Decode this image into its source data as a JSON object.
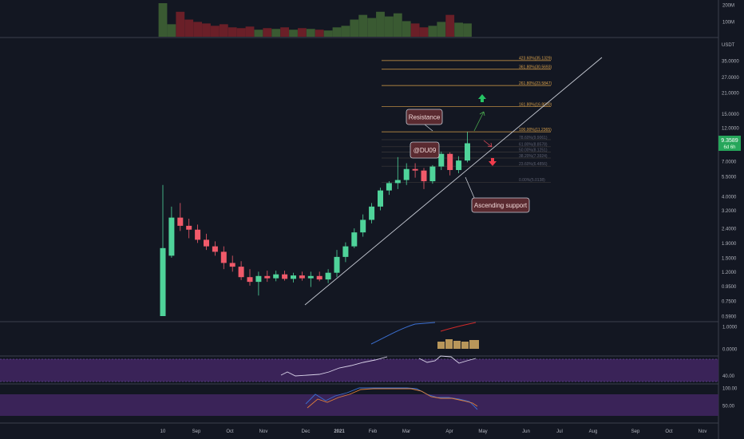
{
  "chart_data": {
    "type": "candlestick",
    "quote_unit": "USDT",
    "price_scale": "log",
    "ylim": [
      0.55,
      42
    ],
    "price_ticks": [
      "35.0000",
      "27.0000",
      "21.0000",
      "15.0000",
      "12.0000",
      "9.0000",
      "7.0000",
      "5.5000",
      "4.0000",
      "3.2000",
      "2.4000",
      "1.9000",
      "1.5000",
      "1.2000",
      "0.9500",
      "0.7500",
      "0.5900"
    ],
    "time_ticks": [
      "10",
      "Sep",
      "Oct",
      "Nov",
      "Dec",
      "2021",
      "Feb",
      "Mar",
      "Apr",
      "May",
      "Jun",
      "Jul",
      "Aug",
      "Sep",
      "Oct",
      "Nov"
    ],
    "current_price": "9.3589",
    "countdown": "6d 6h",
    "candles": [
      {
        "o": 0.59,
        "h": 4.8,
        "l": 0.59,
        "c": 1.75
      },
      {
        "o": 1.55,
        "h": 3.4,
        "l": 1.5,
        "c": 2.85
      },
      {
        "o": 2.85,
        "h": 3.6,
        "l": 2.3,
        "c": 2.5
      },
      {
        "o": 2.5,
        "h": 2.8,
        "l": 2.05,
        "c": 2.35
      },
      {
        "o": 2.35,
        "h": 2.55,
        "l": 1.9,
        "c": 2.0
      },
      {
        "o": 2.0,
        "h": 2.2,
        "l": 1.7,
        "c": 1.8
      },
      {
        "o": 1.8,
        "h": 1.95,
        "l": 1.55,
        "c": 1.65
      },
      {
        "o": 1.65,
        "h": 1.8,
        "l": 1.25,
        "c": 1.38
      },
      {
        "o": 1.38,
        "h": 1.55,
        "l": 1.2,
        "c": 1.3
      },
      {
        "o": 1.3,
        "h": 1.42,
        "l": 1.05,
        "c": 1.1
      },
      {
        "o": 1.1,
        "h": 1.25,
        "l": 0.96,
        "c": 1.02
      },
      {
        "o": 1.02,
        "h": 1.2,
        "l": 0.82,
        "c": 1.12
      },
      {
        "o": 1.12,
        "h": 1.22,
        "l": 1.02,
        "c": 1.08
      },
      {
        "o": 1.08,
        "h": 1.22,
        "l": 1.03,
        "c": 1.15
      },
      {
        "o": 1.15,
        "h": 1.22,
        "l": 1.04,
        "c": 1.07
      },
      {
        "o": 1.07,
        "h": 1.18,
        "l": 1.01,
        "c": 1.13
      },
      {
        "o": 1.13,
        "h": 1.2,
        "l": 1.04,
        "c": 1.08
      },
      {
        "o": 1.08,
        "h": 1.2,
        "l": 0.94,
        "c": 1.12
      },
      {
        "o": 1.12,
        "h": 1.2,
        "l": 1.03,
        "c": 1.06
      },
      {
        "o": 1.06,
        "h": 1.25,
        "l": 1.0,
        "c": 1.18
      },
      {
        "o": 1.18,
        "h": 1.7,
        "l": 1.1,
        "c": 1.52
      },
      {
        "o": 1.52,
        "h": 1.92,
        "l": 1.4,
        "c": 1.8
      },
      {
        "o": 1.8,
        "h": 2.4,
        "l": 1.75,
        "c": 2.25
      },
      {
        "o": 2.25,
        "h": 3.0,
        "l": 2.1,
        "c": 2.75
      },
      {
        "o": 2.75,
        "h": 3.6,
        "l": 2.6,
        "c": 3.4
      },
      {
        "o": 3.4,
        "h": 4.6,
        "l": 3.2,
        "c": 4.4
      },
      {
        "o": 4.4,
        "h": 5.1,
        "l": 4.1,
        "c": 4.95
      },
      {
        "o": 4.95,
        "h": 7.5,
        "l": 4.5,
        "c": 5.2
      },
      {
        "o": 5.2,
        "h": 6.8,
        "l": 4.8,
        "c": 6.2
      },
      {
        "o": 6.2,
        "h": 6.8,
        "l": 5.4,
        "c": 6.05
      },
      {
        "o": 6.05,
        "h": 6.3,
        "l": 4.5,
        "c": 5.1
      },
      {
        "o": 5.1,
        "h": 6.6,
        "l": 4.9,
        "c": 6.45
      },
      {
        "o": 6.45,
        "h": 8.2,
        "l": 6.1,
        "c": 7.9
      },
      {
        "o": 7.9,
        "h": 8.1,
        "l": 5.6,
        "c": 6.1
      },
      {
        "o": 6.1,
        "h": 7.6,
        "l": 5.8,
        "c": 7.1
      },
      {
        "o": 7.1,
        "h": 11.2,
        "l": 6.9,
        "c": 9.36
      }
    ],
    "volume": {
      "ticks": [
        "200M",
        "100M"
      ],
      "values": [
        215,
        80,
        160,
        110,
        95,
        85,
        70,
        80,
        60,
        55,
        65,
        45,
        55,
        50,
        60,
        45,
        55,
        50,
        45,
        40,
        60,
        70,
        110,
        140,
        120,
        160,
        130,
        150,
        100,
        85,
        60,
        70,
        95,
        140,
        90,
        85
      ],
      "directions": [
        "up",
        "up",
        "down",
        "down",
        "down",
        "down",
        "down",
        "down",
        "down",
        "down",
        "down",
        "up",
        "down",
        "up",
        "down",
        "up",
        "down",
        "up",
        "down",
        "up",
        "up",
        "up",
        "up",
        "up",
        "up",
        "up",
        "up",
        "up",
        "up",
        "down",
        "down",
        "up",
        "up",
        "down",
        "up",
        "up"
      ]
    },
    "fib_levels": [
      {
        "label": "423.60%(35.1329)",
        "price": 35.13,
        "strong": true
      },
      {
        "label": "361.80%(30.5693)",
        "price": 30.57,
        "strong": true
      },
      {
        "label": "261.80%(23.5847)",
        "price": 23.58,
        "strong": true
      },
      {
        "label": "161.80%(16.8030)",
        "price": 16.8,
        "strong": true
      },
      {
        "label": "100.00%(11.2365)",
        "price": 11.24,
        "strong": true
      },
      {
        "label": "78.60%(9.9061)",
        "price": 9.91,
        "strong": false
      },
      {
        "label": "61.80%(8.8578)",
        "price": 8.86,
        "strong": false
      },
      {
        "label": "50.00%(8.1251)",
        "price": 8.13,
        "strong": false
      },
      {
        "label": "38.20%(7.3924)",
        "price": 7.39,
        "strong": false
      },
      {
        "label": "23.60%(6.4856)",
        "price": 6.49,
        "strong": false
      },
      {
        "label": "0.00%(5.0138)",
        "price": 5.01,
        "strong": false
      }
    ],
    "annotations": {
      "resistance": "Resistance",
      "author": "@DU09",
      "support": "Ascending support"
    },
    "indicator1": {
      "ticks": [
        "1.0000",
        "0.0000"
      ]
    },
    "rsi": {
      "ticks": [
        "40.00"
      ]
    },
    "stoch": {
      "ticks": [
        "100.00",
        "50.00"
      ]
    }
  },
  "colors": {
    "background": "#131722",
    "up": "#26a69a",
    "up_candle": "#4fd39a",
    "down": "#f05a6a",
    "volume_up": "#3a5a32",
    "volume_down": "#6a1f28",
    "fib": "#d9a04a",
    "purple_band": "#3a2358"
  }
}
